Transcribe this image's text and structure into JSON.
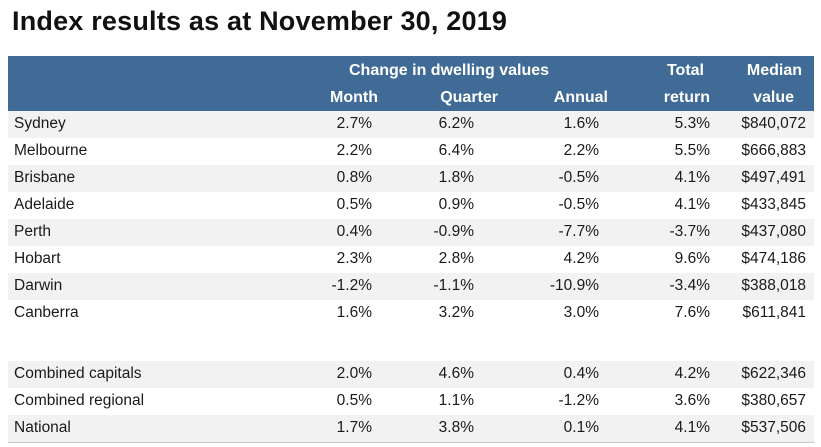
{
  "title": "Index results as at November 30, 2019",
  "header": {
    "group_label": "Change in dwelling values",
    "month": "Month",
    "quarter": "Quarter",
    "annual": "Annual",
    "total_line1": "Total",
    "total_line2": "return",
    "median_line1": "Median",
    "median_line2": "value"
  },
  "rows": [
    {
      "name": "Sydney",
      "month": "2.7%",
      "quarter": "6.2%",
      "annual": "1.6%",
      "total": "5.3%",
      "median": "$840,072"
    },
    {
      "name": "Melbourne",
      "month": "2.2%",
      "quarter": "6.4%",
      "annual": "2.2%",
      "total": "5.5%",
      "median": "$666,883"
    },
    {
      "name": "Brisbane",
      "month": "0.8%",
      "quarter": "1.8%",
      "annual": "-0.5%",
      "total": "4.1%",
      "median": "$497,491"
    },
    {
      "name": "Adelaide",
      "month": "0.5%",
      "quarter": "0.9%",
      "annual": "-0.5%",
      "total": "4.1%",
      "median": "$433,845"
    },
    {
      "name": "Perth",
      "month": "0.4%",
      "quarter": "-0.9%",
      "annual": "-7.7%",
      "total": "-3.7%",
      "median": "$437,080"
    },
    {
      "name": "Hobart",
      "month": "2.3%",
      "quarter": "2.8%",
      "annual": "4.2%",
      "total": "9.6%",
      "median": "$474,186"
    },
    {
      "name": "Darwin",
      "month": "-1.2%",
      "quarter": "-1.1%",
      "annual": "-10.9%",
      "total": "-3.4%",
      "median": "$388,018"
    },
    {
      "name": "Canberra",
      "month": "1.6%",
      "quarter": "3.2%",
      "annual": "3.0%",
      "total": "7.6%",
      "median": "$611,841"
    }
  ],
  "summary_rows": [
    {
      "name": "Combined capitals",
      "month": "2.0%",
      "quarter": "4.6%",
      "annual": "0.4%",
      "total": "4.2%",
      "median": "$622,346"
    },
    {
      "name": "Combined regional",
      "month": "0.5%",
      "quarter": "1.1%",
      "annual": "-1.2%",
      "total": "3.6%",
      "median": "$380,657"
    },
    {
      "name": "National",
      "month": "1.7%",
      "quarter": "3.8%",
      "annual": "0.1%",
      "total": "4.1%",
      "median": "$537,506"
    }
  ],
  "colors": {
    "header_bg": "#3f6b96",
    "header_text": "#ffffff",
    "row_shade": "#f2f2f2"
  }
}
